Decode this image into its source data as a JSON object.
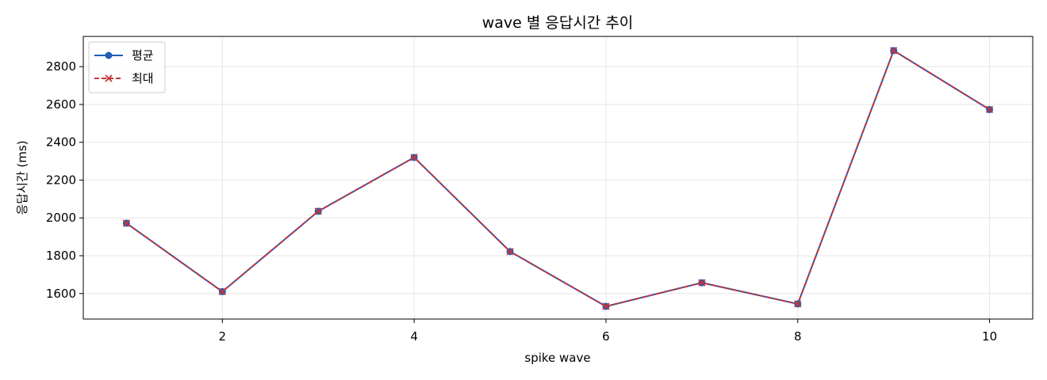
{
  "chart_data": {
    "type": "line",
    "title": "wave 별 응답시간 추이",
    "xlabel": "spike wave",
    "ylabel": "응답시간 (ms)",
    "x": [
      1,
      2,
      3,
      4,
      5,
      6,
      7,
      8,
      9,
      10
    ],
    "xlim": [
      0.55,
      10.45
    ],
    "ylim": [
      1465,
      2960
    ],
    "xticks": [
      2,
      4,
      6,
      8,
      10
    ],
    "yticks": [
      1600,
      1800,
      2000,
      2200,
      2400,
      2600,
      2800
    ],
    "grid": true,
    "legend_position": "top-left",
    "series": [
      {
        "name": "평균",
        "color": "#1f5fb4",
        "linestyle": "solid",
        "marker": "circle",
        "values": [
          1972,
          1610,
          2035,
          2320,
          1822,
          1532,
          1657,
          1545,
          2885,
          2573
        ]
      },
      {
        "name": "최대",
        "color": "#c8333a",
        "linestyle": "dashed",
        "marker": "x",
        "values": [
          1972,
          1610,
          2035,
          2320,
          1822,
          1532,
          1657,
          1545,
          2885,
          2573
        ]
      }
    ]
  }
}
